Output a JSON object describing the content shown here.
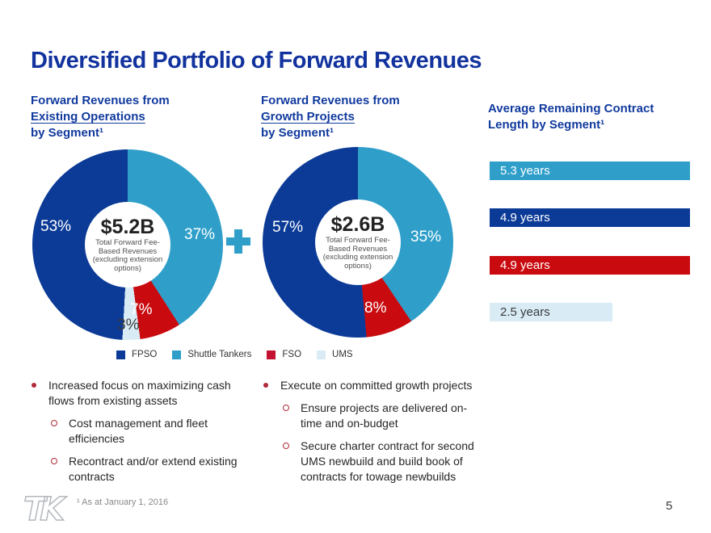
{
  "slide": {
    "title": "Diversified Portfolio of Forward Revenues",
    "page_number": "5",
    "footnote": "¹ As at January 1, 2016",
    "logo_text": "TK"
  },
  "colors": {
    "navy": "#0c3b97",
    "teal": "#2f9fca",
    "red": "#c90b10",
    "legend_fso": "#c41230",
    "pale_blue": "#d9ecf6",
    "heading_blue": "#113a9e",
    "title_blue": "#12339e",
    "bullet_red": "#b02a37"
  },
  "headings": {
    "left": {
      "line1": "Forward Revenues from",
      "line2": "Existing Operations",
      "line3": "by Segment¹"
    },
    "right": {
      "line1": "Forward Revenues from",
      "line2": "Growth Projects",
      "line3": "by Segment¹"
    },
    "bars": "Average Remaining Contract Length by Segment¹",
    "plus": "+"
  },
  "chart_data": [
    {
      "type": "pie",
      "subtype": "donut",
      "title": "Forward Revenues from Existing Operations by Segment¹",
      "center_value": "$5.2B",
      "center_note": "Total Forward Fee-Based Revenues (excluding extension options)",
      "center_note_lines": [
        "Total Forward Fee-",
        "Based Revenues",
        "(excluding extension",
        "options)"
      ],
      "start_angle_deg": 14,
      "segments": [
        {
          "label": "Shuttle Tankers",
          "value": 37,
          "display": "37%",
          "color": "#2f9fca"
        },
        {
          "label": "FSO",
          "value": 7,
          "display": "7%",
          "color": "#c90b10"
        },
        {
          "label": "UMS",
          "value": 3,
          "display": "3%",
          "color": "#d9ecf6"
        },
        {
          "label": "FPSO",
          "value": 53,
          "display": "53%",
          "color": "#0c3b97"
        }
      ]
    },
    {
      "type": "pie",
      "subtype": "donut",
      "title": "Forward Revenues from Growth Projects by Segment¹",
      "center_value": "$2.6B",
      "center_note": "Total Forward Fee-Based Revenues (excluding extension options)",
      "center_note_lines": [
        "Total Forward Fee-",
        "Based Revenues",
        "(excluding extension",
        "options)"
      ],
      "start_angle_deg": 20,
      "segments": [
        {
          "label": "Shuttle Tankers",
          "value": 35,
          "display": "35%",
          "color": "#2f9fca"
        },
        {
          "label": "FSO",
          "value": 8,
          "display": "8%",
          "color": "#c90b10"
        },
        {
          "label": "FPSO",
          "value": 57,
          "display": "57%",
          "color": "#0c3b97"
        }
      ]
    },
    {
      "type": "bar",
      "title": "Average Remaining Contract Length by Segment¹",
      "orientation": "horizontal",
      "categories": [
        "Shuttle Tankers",
        "FPSO",
        "FSO",
        "UMS"
      ],
      "values": [
        5.3,
        4.9,
        4.9,
        2.5
      ],
      "labels": [
        "5.3 years",
        "4.9 years",
        "4.9 years",
        "2.5 years"
      ],
      "colors": [
        "#2f9fca",
        "#0c3b97",
        "#c90b10",
        "#d9ecf6"
      ]
    }
  ],
  "legend": [
    {
      "label": "FPSO",
      "color": "#0c3b97"
    },
    {
      "label": "Shuttle Tankers",
      "color": "#2f9fca"
    },
    {
      "label": "FSO",
      "color": "#c41230"
    },
    {
      "label": "UMS",
      "color": "#d9ecf6"
    }
  ],
  "bullets": {
    "left": [
      {
        "level": 1,
        "text": "Increased focus on maximizing cash flows from existing assets"
      },
      {
        "level": 2,
        "text": "Cost management and fleet efficiencies"
      },
      {
        "level": 2,
        "text": "Recontract and/or extend existing contracts"
      }
    ],
    "right": [
      {
        "level": 1,
        "text": "Execute on committed growth projects"
      },
      {
        "level": 2,
        "text": "Ensure projects are delivered on-time and on-budget"
      },
      {
        "level": 2,
        "text": "Secure charter contract for second UMS newbuild and build book of contracts for towage newbuilds"
      }
    ]
  }
}
